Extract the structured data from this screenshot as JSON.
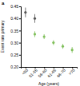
{
  "chart_data": {
    "type": "scatter",
    "panel_label": "a",
    "x_label": "Age (years)",
    "y_label": "Event rate primary",
    "categories": [
      "<50",
      "51-55",
      "56-60",
      "61-65",
      "66-70",
      ">70"
    ],
    "ylim": [
      0.2,
      0.45
    ],
    "yticks": [
      {
        "value": 0.2,
        "label": "0.20"
      },
      {
        "value": 0.25,
        "label": "0.25"
      },
      {
        "value": 0.3,
        "label": "0.30"
      },
      {
        "value": 0.35,
        "label": "0.35"
      },
      {
        "value": 0.4,
        "label": "0.40"
      },
      {
        "value": 0.45,
        "label": "0.45"
      }
    ],
    "grid": false,
    "marker": "circle",
    "series": [
      {
        "color": "#555555",
        "values": [
          0.425,
          0.4,
          null,
          null,
          null,
          null
        ],
        "errors": [
          0.02,
          0.018,
          null,
          null,
          null,
          null
        ]
      },
      {
        "color": "#7fbf5a",
        "values": [
          null,
          0.335,
          0.325,
          0.3,
          0.285,
          0.27
        ],
        "errors": [
          null,
          0.012,
          0.01,
          0.01,
          0.01,
          0.012
        ]
      }
    ]
  }
}
